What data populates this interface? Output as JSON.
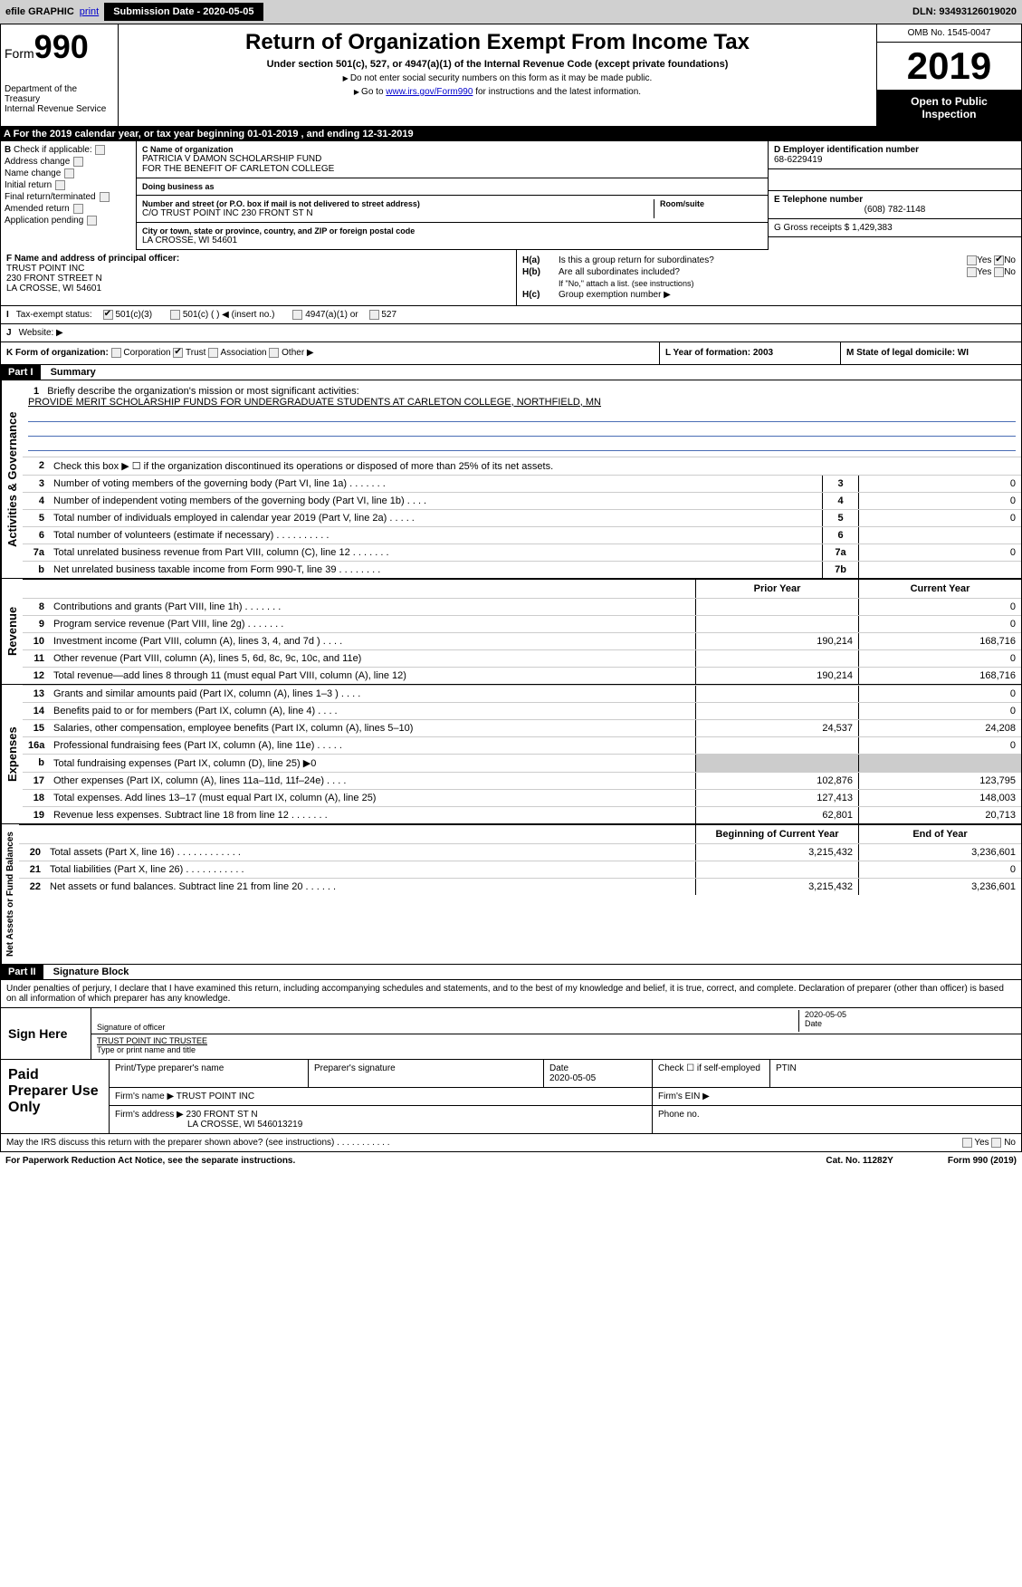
{
  "efile": {
    "graphic": "efile GRAPHIC",
    "print": "print",
    "submission_label": "Submission Date - 2020-05-05",
    "dln": "DLN: 93493126019020"
  },
  "header": {
    "form_label": "Form",
    "form_num": "990",
    "title": "Return of Organization Exempt From Income Tax",
    "subtitle": "Under section 501(c), 527, or 4947(a)(1) of the Internal Revenue Code (except private foundations)",
    "note1": "Do not enter social security numbers on this form as it may be made public.",
    "note2_prefix": "Go to ",
    "note2_link": "www.irs.gov/Form990",
    "note2_suffix": " for instructions and the latest information.",
    "dept1": "Department of the Treasury",
    "dept2": "Internal Revenue Service",
    "omb": "OMB No. 1545-0047",
    "year": "2019",
    "open": "Open to Public Inspection"
  },
  "a_row": "For the 2019 calendar year, or tax year beginning 01-01-2019       , and ending 12-31-2019",
  "b": {
    "label": "Check if applicable:",
    "opts": [
      "Address change",
      "Name change",
      "Initial return",
      "Final return/terminated",
      "Amended return",
      "Application pending"
    ]
  },
  "c": {
    "name_label": "C Name of organization",
    "name1": "PATRICIA V DAMON SCHOLARSHIP FUND",
    "name2": "FOR THE BENEFIT OF CARLETON COLLEGE",
    "dba_label": "Doing business as",
    "dba": "",
    "addr_label": "Number and street (or P.O. box if mail is not delivered to street address)",
    "room_label": "Room/suite",
    "addr": "C/O TRUST POINT INC 230 FRONT ST N",
    "city_label": "City or town, state or province, country, and ZIP or foreign postal code",
    "city": "LA CROSSE, WI  54601"
  },
  "d": {
    "label": "D Employer identification number",
    "value": "68-6229419"
  },
  "e": {
    "label": "E Telephone number",
    "value": "(608) 782-1148"
  },
  "g": {
    "label": "G Gross receipts $ 1,429,383"
  },
  "f": {
    "label": "F  Name and address of principal officer:",
    "line1": "TRUST POINT INC",
    "line2": "230 FRONT STREET N",
    "line3": "LA CROSSE, WI  54601"
  },
  "h": {
    "a_label": "H(a)",
    "a_text": "Is this a group return for subordinates?",
    "b_label": "H(b)",
    "b_text": "Are all subordinates included?",
    "b_note": "If \"No,\" attach a list. (see instructions)",
    "c_label": "H(c)",
    "c_text": "Group exemption number ▶",
    "yes": "Yes",
    "no": "No"
  },
  "i": {
    "label": "Tax-exempt status:",
    "opts": [
      "501(c)(3)",
      "501(c) (  ) ◀ (insert no.)",
      "4947(a)(1) or",
      "527"
    ]
  },
  "j": {
    "label": "Website: ▶"
  },
  "k": {
    "label": "K Form of organization:",
    "opts": [
      "Corporation",
      "Trust",
      "Association",
      "Other ▶"
    ]
  },
  "l": {
    "label": "L Year of formation: 2003"
  },
  "m": {
    "label": "M State of legal domicile: WI"
  },
  "part1": {
    "header": "Part I",
    "title": "Summary"
  },
  "mission": {
    "num": "1",
    "label": "Briefly describe the organization's mission or most significant activities:",
    "text": "PROVIDE MERIT SCHOLARSHIP FUNDS FOR UNDERGRADUATE STUDENTS AT CARLETON COLLEGE, NORTHFIELD, MN"
  },
  "governance_rows": [
    {
      "n": "2",
      "d": "Check this box ▶ ☐  if the organization discontinued its operations or disposed of more than 25% of its net assets."
    },
    {
      "n": "3",
      "d": "Number of voting members of the governing body (Part VI, line 1a)   .    .    .    .    .    .    .",
      "b": "3",
      "v": "0"
    },
    {
      "n": "4",
      "d": "Number of independent voting members of the governing body (Part VI, line 1b)   .    .    .    .",
      "b": "4",
      "v": "0"
    },
    {
      "n": "5",
      "d": "Total number of individuals employed in calendar year 2019 (Part V, line 2a)   .    .    .    .    .",
      "b": "5",
      "v": "0"
    },
    {
      "n": "6",
      "d": "Total number of volunteers (estimate if necessary)   .    .    .    .    .    .    .    .    .    .",
      "b": "6",
      "v": ""
    },
    {
      "n": "7a",
      "d": "Total unrelated business revenue from Part VIII, column (C), line 12   .    .    .    .    .    .    .",
      "b": "7a",
      "v": "0"
    },
    {
      "n": "b",
      "d": "Net unrelated business taxable income from Form 990-T, line 39   .    .    .    .    .    .    .    .",
      "b": "7b",
      "v": ""
    }
  ],
  "col_headers": {
    "prior": "Prior Year",
    "current": "Current Year",
    "boy": "Beginning of Current Year",
    "eoy": "End of Year"
  },
  "revenue_rows": [
    {
      "n": "8",
      "d": "Contributions and grants (Part VIII, line 1h)   .    .    .    .    .    .    .",
      "p": "",
      "c": "0"
    },
    {
      "n": "9",
      "d": "Program service revenue (Part VIII, line 2g)   .    .    .    .    .    .    .",
      "p": "",
      "c": "0"
    },
    {
      "n": "10",
      "d": "Investment income (Part VIII, column (A), lines 3, 4, and 7d )   .    .    .    .",
      "p": "190,214",
      "c": "168,716"
    },
    {
      "n": "11",
      "d": "Other revenue (Part VIII, column (A), lines 5, 6d, 8c, 9c, 10c, and 11e)",
      "p": "",
      "c": "0"
    },
    {
      "n": "12",
      "d": "Total revenue—add lines 8 through 11 (must equal Part VIII, column (A), line 12)",
      "p": "190,214",
      "c": "168,716"
    }
  ],
  "expense_rows": [
    {
      "n": "13",
      "d": "Grants and similar amounts paid (Part IX, column (A), lines 1–3 )   .    .    .    .",
      "p": "",
      "c": "0"
    },
    {
      "n": "14",
      "d": "Benefits paid to or for members (Part IX, column (A), line 4)   .    .    .    .",
      "p": "",
      "c": "0"
    },
    {
      "n": "15",
      "d": "Salaries, other compensation, employee benefits (Part IX, column (A), lines 5–10)",
      "p": "24,537",
      "c": "24,208"
    },
    {
      "n": "16a",
      "d": "Professional fundraising fees (Part IX, column (A), line 11e)   .    .    .    .    .",
      "p": "",
      "c": "0"
    },
    {
      "n": "b",
      "d": "Total fundraising expenses (Part IX, column (D), line 25) ▶0",
      "p": null,
      "c": null
    },
    {
      "n": "17",
      "d": "Other expenses (Part IX, column (A), lines 11a–11d, 11f–24e)   .    .    .    .",
      "p": "102,876",
      "c": "123,795"
    },
    {
      "n": "18",
      "d": "Total expenses. Add lines 13–17 (must equal Part IX, column (A), line 25)",
      "p": "127,413",
      "c": "148,003"
    },
    {
      "n": "19",
      "d": "Revenue less expenses. Subtract line 18 from line 12   .    .    .    .    .    .    .",
      "p": "62,801",
      "c": "20,713"
    }
  ],
  "balance_rows": [
    {
      "n": "20",
      "d": "Total assets (Part X, line 16)   .    .    .    .    .    .    .    .    .    .    .    .",
      "p": "3,215,432",
      "c": "3,236,601"
    },
    {
      "n": "21",
      "d": "Total liabilities (Part X, line 26)   .    .    .    .    .    .    .    .    .    .    .",
      "p": "",
      "c": "0"
    },
    {
      "n": "22",
      "d": "Net assets or fund balances. Subtract line 21 from line 20   .    .    .    .    .    .",
      "p": "3,215,432",
      "c": "3,236,601"
    }
  ],
  "part2": {
    "header": "Part II",
    "title": "Signature Block"
  },
  "sig": {
    "intro": "Under penalties of perjury, I declare that I have examined this return, including accompanying schedules and statements, and to the best of my knowledge and belief, it is true, correct, and complete. Declaration of preparer (other than officer) is based on all information of which preparer has any knowledge.",
    "here": "Sign Here",
    "sig_officer": "Signature of officer",
    "date_label": "Date",
    "date_val": "2020-05-05",
    "name_val": "TRUST POINT INC  TRUSTEE",
    "name_label": "Type or print name and title"
  },
  "prep": {
    "label": "Paid Preparer Use Only",
    "h1": "Print/Type preparer's name",
    "h2": "Preparer's signature",
    "h3": "Date",
    "h3v": "2020-05-05",
    "h4": "Check ☐ if self-employed",
    "h5": "PTIN",
    "firm_name_label": "Firm's name   ▶",
    "firm_name": "TRUST POINT INC",
    "firm_ein": "Firm's EIN ▶",
    "firm_addr_label": "Firm's address ▶",
    "firm_addr1": "230 FRONT ST N",
    "firm_addr2": "LA CROSSE, WI  546013219",
    "phone": "Phone no."
  },
  "discuss": "May the IRS discuss this return with the preparer shown above? (see instructions)   .    .    .    .    .    .    .    .    .    .    .",
  "footer": {
    "left": "For Paperwork Reduction Act Notice, see the separate instructions.",
    "cat": "Cat. No. 11282Y",
    "right": "Form 990 (2019)"
  },
  "vert": {
    "gov": "Activities & Governance",
    "rev": "Revenue",
    "exp": "Expenses",
    "bal": "Net Assets or Fund Balances"
  }
}
